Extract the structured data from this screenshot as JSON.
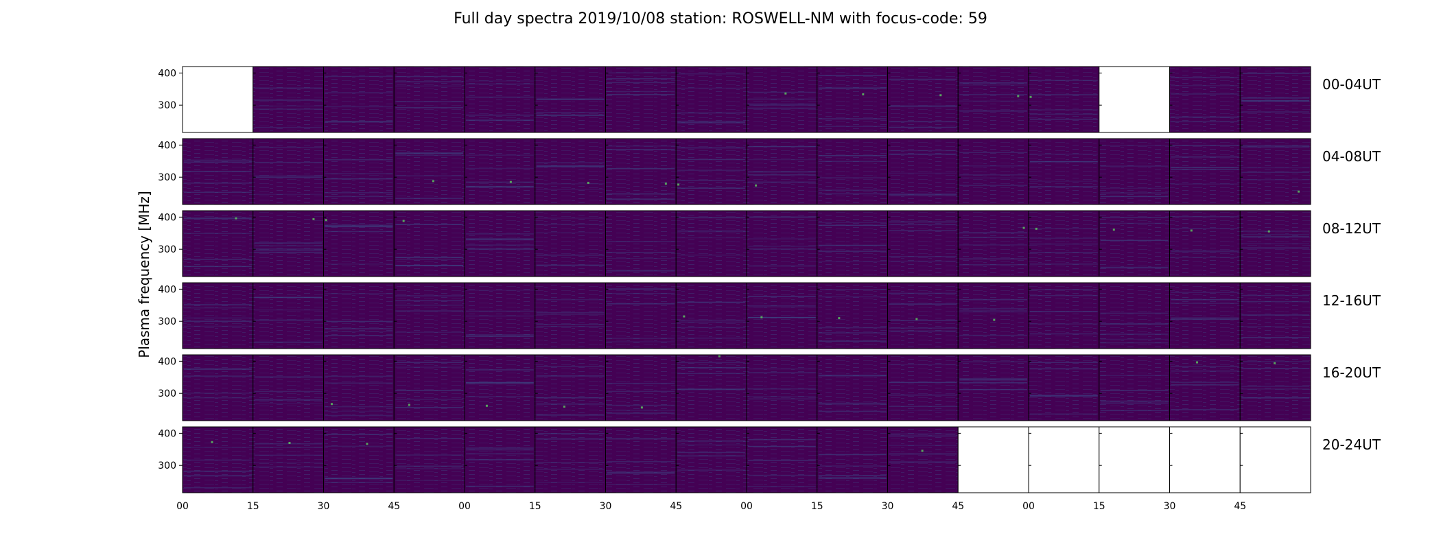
{
  "chart_data": {
    "type": "heatmap",
    "title": "Full day spectra 2019/10/08 station: ROSWELL-NM with focus-code: 59",
    "ylabel": "Plasma frequency [MHz]",
    "xlabel": "",
    "y_ticks": [
      300,
      400
    ],
    "ylim": [
      215,
      420
    ],
    "x_tick_labels": [
      "00",
      "15",
      "30",
      "45",
      "00",
      "15",
      "30",
      "45",
      "00",
      "15",
      "30",
      "45",
      "00",
      "15",
      "30",
      "45"
    ],
    "panels_per_row": 16,
    "panel_minutes": 15,
    "colormap": "viridis",
    "colors": {
      "background": "#440154",
      "stripe": "#3b528b",
      "highlight": "#21918c",
      "spark": "#5ec962"
    },
    "rows": [
      {
        "label": "00-04UT",
        "blank_panels": [
          0,
          13
        ]
      },
      {
        "label": "04-08UT",
        "blank_panels": []
      },
      {
        "label": "08-12UT",
        "blank_panels": []
      },
      {
        "label": "12-16UT",
        "blank_panels": []
      },
      {
        "label": "16-20UT",
        "blank_panels": []
      },
      {
        "label": "20-24UT",
        "blank_panels": [
          11,
          12,
          13,
          14,
          15
        ]
      }
    ]
  }
}
